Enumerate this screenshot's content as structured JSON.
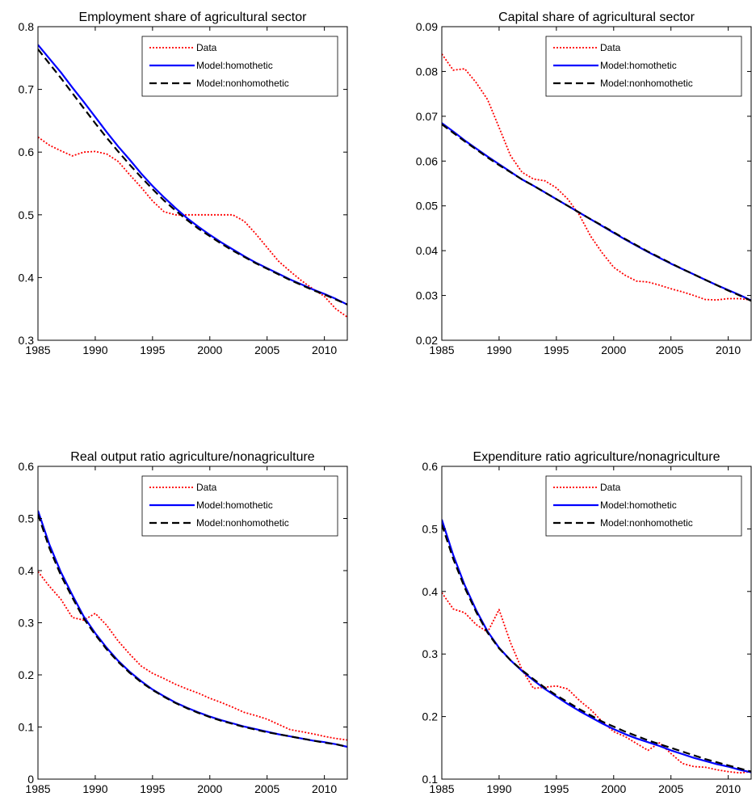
{
  "chart_data": [
    {
      "type": "line",
      "title": "Employment share of agricultural sector",
      "xlim": [
        1985,
        2012
      ],
      "ylim": [
        0.3,
        0.8
      ],
      "xticks": [
        1985,
        1990,
        1995,
        2000,
        2005,
        2010
      ],
      "yticks": [
        0.3,
        0.4,
        0.5,
        0.6,
        0.7,
        0.8
      ],
      "yticklabels": [
        "0.3",
        "0.4",
        "0.5",
        "0.6",
        "0.7",
        "0.8"
      ],
      "legend": "top-right",
      "x": [
        1985,
        1986,
        1987,
        1988,
        1989,
        1990,
        1991,
        1992,
        1993,
        1994,
        1995,
        1996,
        1997,
        1998,
        1999,
        2000,
        2001,
        2002,
        2003,
        2004,
        2005,
        2006,
        2007,
        2008,
        2009,
        2010,
        2011,
        2012
      ],
      "series": [
        {
          "name": "Data",
          "color": "#ff0000",
          "dash": "dotted",
          "values": [
            0.624,
            0.611,
            0.602,
            0.594,
            0.6,
            0.601,
            0.597,
            0.585,
            0.564,
            0.544,
            0.522,
            0.505,
            0.5,
            0.5,
            0.5,
            0.5,
            0.5,
            0.5,
            0.49,
            0.47,
            0.448,
            0.426,
            0.41,
            0.395,
            0.382,
            0.37,
            0.35,
            0.337
          ]
        },
        {
          "name": "Model:homothetic",
          "color": "#0000ff",
          "dash": "solid",
          "values": [
            0.771,
            0.749,
            0.727,
            0.703,
            0.68,
            0.656,
            0.632,
            0.609,
            0.588,
            0.566,
            0.546,
            0.528,
            0.511,
            0.495,
            0.481,
            0.468,
            0.456,
            0.445,
            0.434,
            0.424,
            0.415,
            0.406,
            0.397,
            0.389,
            0.381,
            0.374,
            0.366,
            0.357
          ]
        },
        {
          "name": "Model:nonhomothetic",
          "color": "#000000",
          "dash": "dashed",
          "values": [
            0.764,
            0.741,
            0.718,
            0.694,
            0.67,
            0.646,
            0.623,
            0.601,
            0.58,
            0.56,
            0.541,
            0.523,
            0.507,
            0.492,
            0.478,
            0.466,
            0.454,
            0.443,
            0.433,
            0.423,
            0.414,
            0.405,
            0.396,
            0.388,
            0.38,
            0.373,
            0.365,
            0.357
          ]
        }
      ]
    },
    {
      "type": "line",
      "title": "Capital share of agricultural sector",
      "xlim": [
        1985,
        2012
      ],
      "ylim": [
        0.02,
        0.09
      ],
      "xticks": [
        1985,
        1990,
        1995,
        2000,
        2005,
        2010
      ],
      "yticks": [
        0.02,
        0.03,
        0.04,
        0.05,
        0.06,
        0.07,
        0.08,
        0.09
      ],
      "yticklabels": [
        "0.02",
        "0.03",
        "0.04",
        "0.05",
        "0.06",
        "0.07",
        "0.08",
        "0.09"
      ],
      "legend": "top-right",
      "x": [
        1985,
        1986,
        1987,
        1988,
        1989,
        1990,
        1991,
        1992,
        1993,
        1994,
        1995,
        1996,
        1997,
        1998,
        1999,
        2000,
        2001,
        2002,
        2003,
        2004,
        2005,
        2006,
        2007,
        2008,
        2009,
        2010,
        2011,
        2012
      ],
      "series": [
        {
          "name": "Data",
          "color": "#ff0000",
          "dash": "dotted",
          "values": [
            0.0839,
            0.0803,
            0.0806,
            0.0775,
            0.0737,
            0.0675,
            0.0612,
            0.0575,
            0.056,
            0.0556,
            0.054,
            0.0515,
            0.048,
            0.0432,
            0.0395,
            0.0363,
            0.0345,
            0.0332,
            0.033,
            0.0323,
            0.0315,
            0.0308,
            0.03,
            0.0291,
            0.029,
            0.0293,
            0.0293,
            0.029
          ]
        },
        {
          "name": "Model:homothetic",
          "color": "#0000ff",
          "dash": "solid",
          "values": [
            0.0685,
            0.0666,
            0.0646,
            0.0628,
            0.061,
            0.0593,
            0.0576,
            0.0559,
            0.0545,
            0.053,
            0.0515,
            0.05,
            0.0485,
            0.047,
            0.0455,
            0.044,
            0.0425,
            0.0411,
            0.0397,
            0.0384,
            0.0371,
            0.0359,
            0.0347,
            0.0335,
            0.0323,
            0.0312,
            0.0301,
            0.0289
          ]
        },
        {
          "name": "Model:nonhomothetic",
          "color": "#000000",
          "dash": "dashed",
          "values": [
            0.0682,
            0.0663,
            0.0644,
            0.0626,
            0.0608,
            0.0591,
            0.0575,
            0.0559,
            0.0545,
            0.053,
            0.0515,
            0.05,
            0.0485,
            0.047,
            0.0456,
            0.0441,
            0.0426,
            0.0412,
            0.0398,
            0.0385,
            0.0372,
            0.0359,
            0.0347,
            0.0335,
            0.0323,
            0.0311,
            0.03,
            0.0288
          ]
        }
      ]
    },
    {
      "type": "line",
      "title": "Real output ratio agriculture/nonagriculture",
      "xlim": [
        1985,
        2012
      ],
      "ylim": [
        0,
        0.6
      ],
      "xticks": [
        1985,
        1990,
        1995,
        2000,
        2005,
        2010
      ],
      "yticks": [
        0,
        0.1,
        0.2,
        0.3,
        0.4,
        0.5,
        0.6
      ],
      "yticklabels": [
        "0",
        "0.1",
        "0.2",
        "0.3",
        "0.4",
        "0.5",
        "0.6"
      ],
      "legend": "top-right",
      "x": [
        1985,
        1986,
        1987,
        1988,
        1989,
        1990,
        1991,
        1992,
        1993,
        1994,
        1995,
        1996,
        1997,
        1998,
        1999,
        2000,
        2001,
        2002,
        2003,
        2004,
        2005,
        2006,
        2007,
        2008,
        2009,
        2010,
        2011,
        2012
      ],
      "series": [
        {
          "name": "Data",
          "color": "#ff0000",
          "dash": "dotted",
          "values": [
            0.398,
            0.37,
            0.345,
            0.31,
            0.305,
            0.318,
            0.295,
            0.265,
            0.24,
            0.217,
            0.203,
            0.193,
            0.182,
            0.173,
            0.165,
            0.155,
            0.147,
            0.138,
            0.128,
            0.122,
            0.115,
            0.105,
            0.095,
            0.091,
            0.087,
            0.082,
            0.078,
            0.075
          ]
        },
        {
          "name": "Model:homothetic",
          "color": "#0000ff",
          "dash": "solid",
          "values": [
            0.515,
            0.45,
            0.397,
            0.353,
            0.312,
            0.28,
            0.252,
            0.227,
            0.206,
            0.188,
            0.172,
            0.159,
            0.147,
            0.137,
            0.128,
            0.12,
            0.113,
            0.107,
            0.101,
            0.096,
            0.091,
            0.086,
            0.082,
            0.078,
            0.074,
            0.071,
            0.067,
            0.062
          ]
        },
        {
          "name": "Model:nonhomothetic",
          "color": "#000000",
          "dash": "dashed",
          "values": [
            0.508,
            0.443,
            0.391,
            0.348,
            0.308,
            0.277,
            0.249,
            0.225,
            0.204,
            0.186,
            0.171,
            0.158,
            0.146,
            0.136,
            0.127,
            0.119,
            0.112,
            0.106,
            0.1,
            0.095,
            0.09,
            0.086,
            0.082,
            0.078,
            0.074,
            0.07,
            0.067,
            0.062
          ]
        }
      ]
    },
    {
      "type": "line",
      "title": "Expenditure ratio agriculture/nonagriculture",
      "xlim": [
        1985,
        2012
      ],
      "ylim": [
        0.1,
        0.6
      ],
      "xticks": [
        1985,
        1990,
        1995,
        2000,
        2005,
        2010
      ],
      "yticks": [
        0.1,
        0.2,
        0.3,
        0.4,
        0.5,
        0.6
      ],
      "yticklabels": [
        "0.1",
        "0.2",
        "0.3",
        "0.4",
        "0.5",
        "0.6"
      ],
      "legend": "top-right",
      "x": [
        1985,
        1986,
        1987,
        1988,
        1989,
        1990,
        1991,
        1992,
        1993,
        1994,
        1995,
        1996,
        1997,
        1998,
        1999,
        2000,
        2001,
        2002,
        2003,
        2004,
        2005,
        2006,
        2007,
        2008,
        2009,
        2010,
        2011,
        2012
      ],
      "series": [
        {
          "name": "Data",
          "color": "#ff0000",
          "dash": "dotted",
          "values": [
            0.398,
            0.372,
            0.366,
            0.347,
            0.335,
            0.371,
            0.318,
            0.275,
            0.245,
            0.247,
            0.249,
            0.244,
            0.226,
            0.211,
            0.192,
            0.176,
            0.168,
            0.157,
            0.146,
            0.158,
            0.141,
            0.125,
            0.12,
            0.119,
            0.115,
            0.112,
            0.11,
            0.112
          ]
        },
        {
          "name": "Model:homothetic",
          "color": "#0000ff",
          "dash": "solid",
          "values": [
            0.515,
            0.458,
            0.41,
            0.37,
            0.336,
            0.31,
            0.29,
            0.273,
            0.258,
            0.244,
            0.232,
            0.22,
            0.209,
            0.199,
            0.189,
            0.18,
            0.172,
            0.165,
            0.159,
            0.153,
            0.146,
            0.14,
            0.134,
            0.129,
            0.124,
            0.12,
            0.115,
            0.111
          ]
        },
        {
          "name": "Model:nonhomothetic",
          "color": "#000000",
          "dash": "dashed",
          "values": [
            0.507,
            0.452,
            0.406,
            0.367,
            0.334,
            0.309,
            0.29,
            0.274,
            0.26,
            0.246,
            0.234,
            0.223,
            0.212,
            0.202,
            0.192,
            0.184,
            0.176,
            0.169,
            0.162,
            0.156,
            0.15,
            0.144,
            0.138,
            0.132,
            0.127,
            0.122,
            0.117,
            0.112
          ]
        }
      ]
    }
  ]
}
